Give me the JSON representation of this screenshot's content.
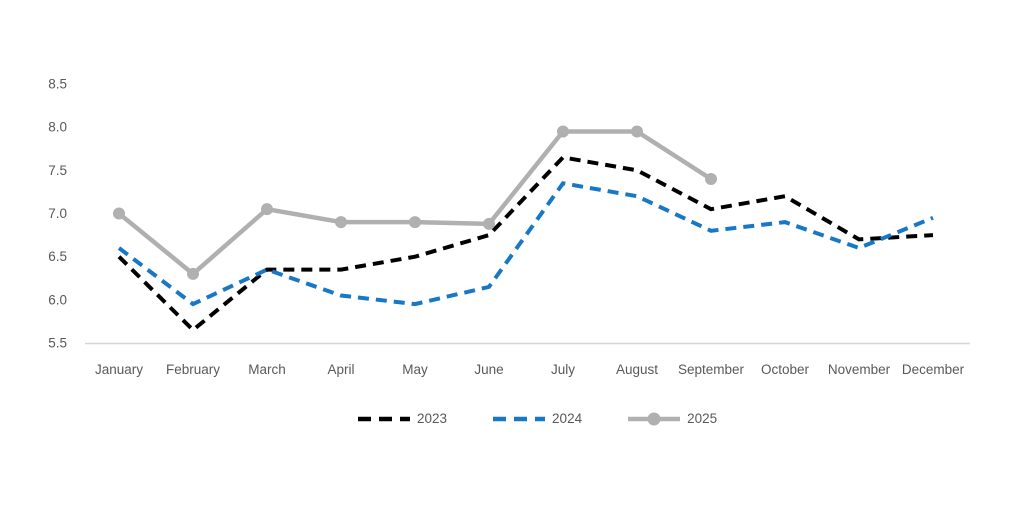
{
  "chart": {
    "title": "",
    "background": "#ffffff",
    "axis_color": "#d6d6d6",
    "label_color": "#595959"
  },
  "chart_data": {
    "type": "line",
    "categories": [
      "January",
      "February",
      "March",
      "April",
      "May",
      "June",
      "July",
      "August",
      "September",
      "October",
      "November",
      "December"
    ],
    "series": [
      {
        "name": "2023",
        "color": "#000000",
        "style": "dashed",
        "marker": false,
        "values": [
          6.5,
          5.65,
          6.35,
          6.35,
          6.5,
          6.75,
          7.65,
          7.5,
          7.05,
          7.2,
          6.7,
          6.75
        ]
      },
      {
        "name": "2024",
        "color": "#1878c8",
        "style": "dashed",
        "marker": false,
        "values": [
          6.6,
          5.95,
          6.35,
          6.05,
          5.95,
          6.15,
          7.35,
          7.2,
          6.8,
          6.9,
          6.6,
          6.95
        ]
      },
      {
        "name": "2025",
        "color": "#b0b0b0",
        "style": "solid",
        "marker": true,
        "values": [
          7.0,
          6.3,
          7.05,
          6.9,
          6.9,
          6.88,
          7.95,
          7.95,
          7.4,
          null,
          null,
          null
        ]
      }
    ],
    "ylim": [
      5.5,
      8.5
    ],
    "ytick_step": 0.5,
    "ytick_labels": [
      "8.5",
      "8.0",
      "7.5",
      "7.0",
      "6.5",
      "6.0",
      "5.5"
    ],
    "xlabel": "",
    "ylabel": "",
    "grid": false,
    "legend_position": "bottom"
  }
}
